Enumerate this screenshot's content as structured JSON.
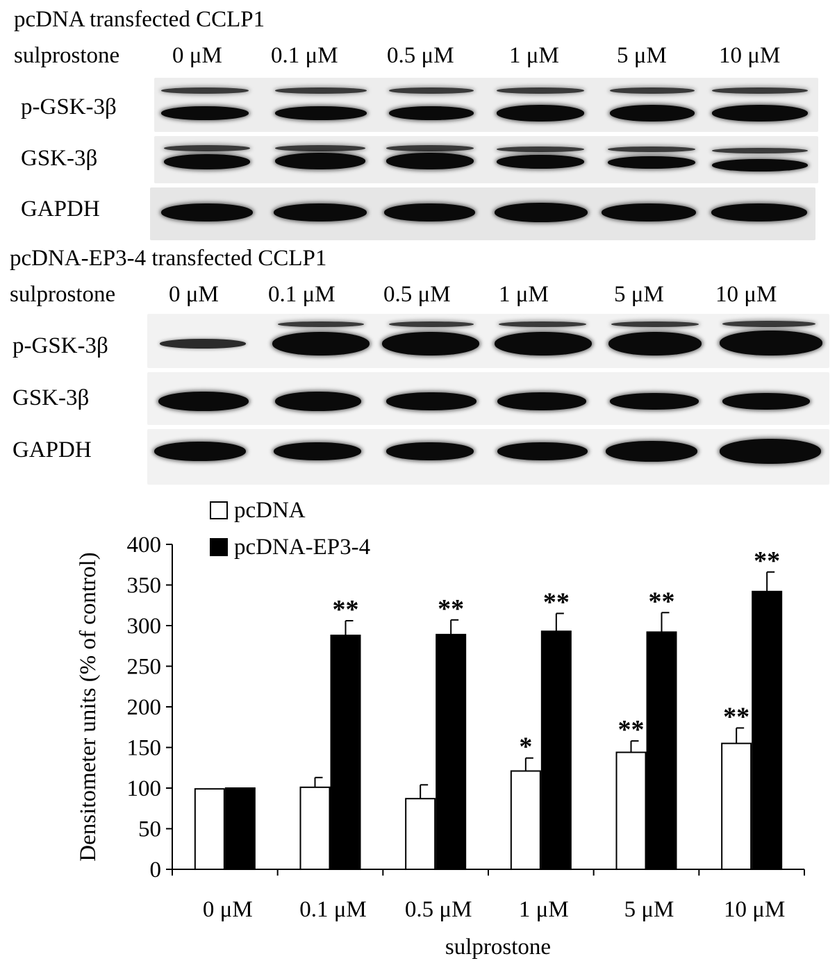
{
  "panel1": {
    "title": "pcDNA transfected CCLP1",
    "treatment_label": "sulprostone",
    "lanes": [
      "0 μM",
      "0.1 μM",
      "0.5 μM",
      "1 μM",
      "5 μM",
      "10 μM"
    ],
    "rows": [
      "p-GSK-3β",
      "GSK-3β",
      "GAPDH"
    ]
  },
  "panel2": {
    "title": "pcDNA-EP3-4 transfected CCLP1",
    "treatment_label": "sulprostone",
    "lanes": [
      "0 μM",
      "0.1 μM",
      "0.5 μM",
      "1 μM",
      "5 μM",
      "10 μM"
    ],
    "rows": [
      "p-GSK-3β",
      "GSK-3β",
      "GAPDH"
    ]
  },
  "chart_data": {
    "type": "bar",
    "title": "",
    "xlabel": "sulprostone",
    "ylabel": "Densitometer units (% of control)",
    "ylim": [
      0,
      400
    ],
    "yticks": [
      0,
      50,
      100,
      150,
      200,
      250,
      300,
      350,
      400
    ],
    "categories": [
      "0 μM",
      "0.1 μM",
      "0.5 μM",
      "1 μM",
      "5 μM",
      "10 μM"
    ],
    "legend_position": "top-left",
    "grid": false,
    "series": [
      {
        "name": "pcDNA",
        "color": "#ffffff",
        "values": [
          99,
          101,
          87,
          121,
          144,
          155
        ],
        "errors": [
          0,
          12,
          17,
          16,
          14,
          19
        ],
        "significance": [
          "",
          "",
          "",
          "*",
          "**",
          "**"
        ]
      },
      {
        "name": "pcDNA-EP3-4",
        "color": "#000000",
        "values": [
          100,
          288,
          289,
          293,
          292,
          342
        ],
        "errors": [
          0,
          18,
          18,
          22,
          24,
          24
        ],
        "significance": [
          "",
          "**",
          "**",
          "**",
          "**",
          "**"
        ]
      }
    ]
  }
}
